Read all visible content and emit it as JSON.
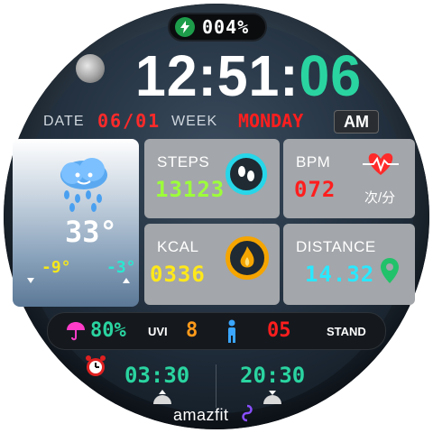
{
  "battery": {
    "percent": "004%",
    "icon": "charging-bolt-icon"
  },
  "time": {
    "hours": "12",
    "minutes": "51",
    "seconds": "06",
    "sep": ":"
  },
  "date": {
    "label": "DATE",
    "value": "06/01",
    "week_label": "WEEK",
    "weekday": "MONDAY",
    "ampm": "AM"
  },
  "weather": {
    "icon": "rain-cloud-icon",
    "temp": "33°",
    "low": "-9°",
    "high": "-3°"
  },
  "steps": {
    "label": "STEPS",
    "value": "13123",
    "icon": "footprints-icon"
  },
  "heart": {
    "label": "BPM",
    "value": "072",
    "unit": "次/分",
    "icon": "heart-pulse-icon"
  },
  "kcal": {
    "label": "KCAL",
    "value": "0336",
    "icon": "flame-icon"
  },
  "distance": {
    "label": "DISTANCE",
    "value": "14.32",
    "icon": "map-pin-icon"
  },
  "info": {
    "humidity": "80%",
    "uvi_label": "UVI",
    "uvi": "8",
    "stand": "05",
    "stand_label": "STAND"
  },
  "alarm": {
    "time": "03:30",
    "icon": "alarm-clock-icon"
  },
  "sun": {
    "time": "20:30"
  },
  "brand": "amazfit",
  "colors": {
    "seconds": "#2ad4a0",
    "red": "#ff2a2a",
    "steps": "#9cff3a",
    "distance": "#2ae8ff",
    "kcal": "#ffe81a"
  }
}
